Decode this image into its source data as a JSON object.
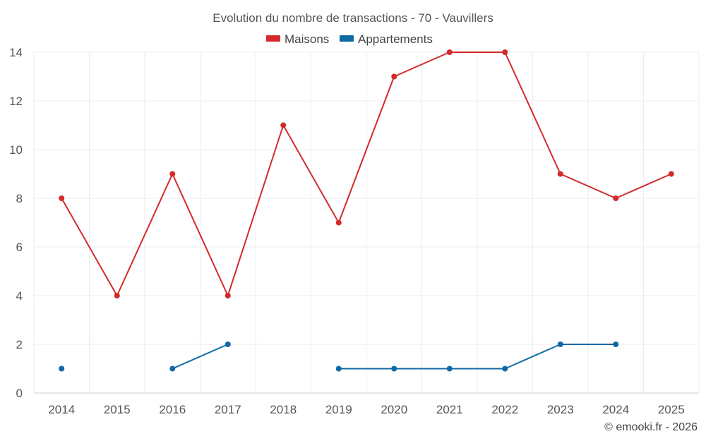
{
  "chart_data": {
    "type": "line",
    "title": "Evolution du nombre de transactions - 70 - Vauvillers",
    "categories": [
      "2014",
      "2015",
      "2016",
      "2017",
      "2018",
      "2019",
      "2020",
      "2021",
      "2022",
      "2023",
      "2024",
      "2025"
    ],
    "series": [
      {
        "name": "Maisons",
        "color": "#d42a2a",
        "values": [
          8,
          4,
          9,
          4,
          11,
          7,
          13,
          14,
          14,
          9,
          8,
          9
        ]
      },
      {
        "name": "Appartements",
        "color": "#0f6aa3",
        "values": [
          1,
          null,
          1,
          2,
          null,
          1,
          1,
          1,
          1,
          2,
          2,
          null
        ]
      }
    ],
    "ylim": [
      0,
      14
    ],
    "yticks": [
      0,
      2,
      4,
      6,
      8,
      10,
      12,
      14
    ],
    "xlabel": "",
    "ylabel": "",
    "grid": true,
    "legend_position": "top-center",
    "credit": "© emooki.fr - 2026"
  }
}
